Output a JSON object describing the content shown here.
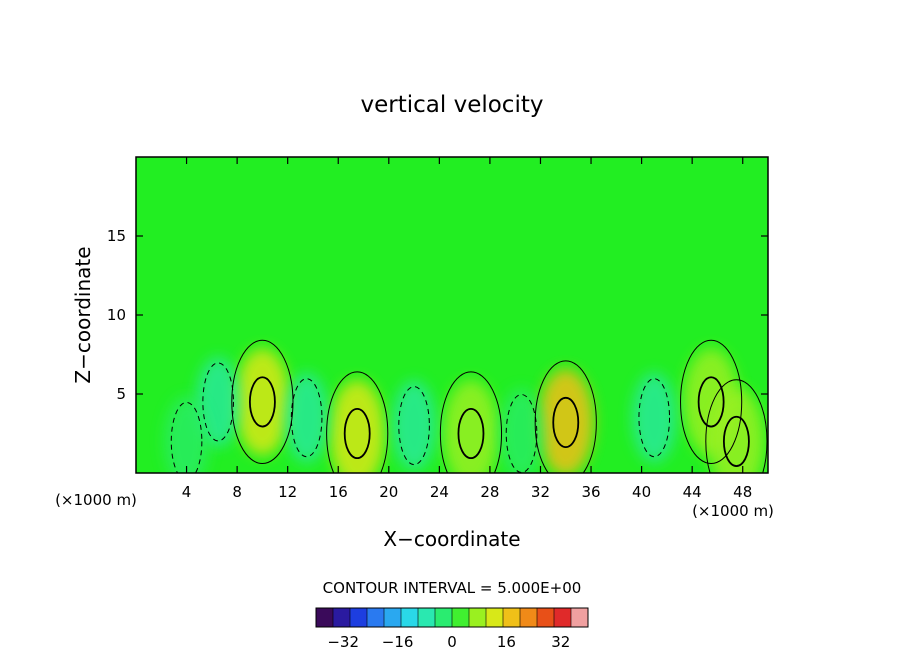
{
  "chart_data": {
    "type": "heatmap",
    "title": "vertical velocity",
    "xlabel": "X−coordinate",
    "ylabel": "Z−coordinate",
    "x_unit_left": "(×1000 m)",
    "x_unit_right": "(×1000 m)",
    "xlim": [
      0,
      50
    ],
    "ylim": [
      0,
      20
    ],
    "x_ticks": [
      4,
      8,
      12,
      16,
      20,
      24,
      28,
      32,
      36,
      40,
      44,
      48
    ],
    "y_ticks": [
      5,
      10,
      15
    ],
    "contour_interval_text": "CONTOUR INTERVAL = 5.000E+00",
    "colorbar": {
      "min": -40,
      "max": 40,
      "ticks": [
        "−32",
        "−16",
        "0",
        "16",
        "32"
      ],
      "tick_values": [
        -32,
        -16,
        0,
        16,
        32
      ],
      "colors": [
        "#3a0a5a",
        "#2a1aa0",
        "#1d3ee0",
        "#2a7af0",
        "#2aa8f0",
        "#2ad8e8",
        "#2ae8b0",
        "#2aec70",
        "#40f030",
        "#9af020",
        "#d8e818",
        "#f0c018",
        "#f08a18",
        "#e85018",
        "#e02a2a",
        "#f0a0a0"
      ]
    },
    "field_background": "#22ee22",
    "positive_cells": [
      {
        "x": 10,
        "z": 4.5,
        "peak": 12
      },
      {
        "x": 17.5,
        "z": 2.5,
        "peak": 14
      },
      {
        "x": 26.5,
        "z": 2.5,
        "peak": 9
      },
      {
        "x": 34,
        "z": 3.2,
        "peak": 16
      },
      {
        "x": 45.5,
        "z": 4.5,
        "peak": 7
      },
      {
        "x": 47.5,
        "z": 2,
        "peak": 9
      }
    ],
    "negative_cells": [
      {
        "x": 6.5,
        "z": 4.5,
        "trough": -7
      },
      {
        "x": 13.5,
        "z": 3.5,
        "trough": -8
      },
      {
        "x": 22,
        "z": 3,
        "trough": -6
      },
      {
        "x": 30.5,
        "z": 2.5,
        "trough": -5
      },
      {
        "x": 41,
        "z": 3.5,
        "trough": -9
      },
      {
        "x": 4,
        "z": 2,
        "trough": -5
      }
    ]
  }
}
